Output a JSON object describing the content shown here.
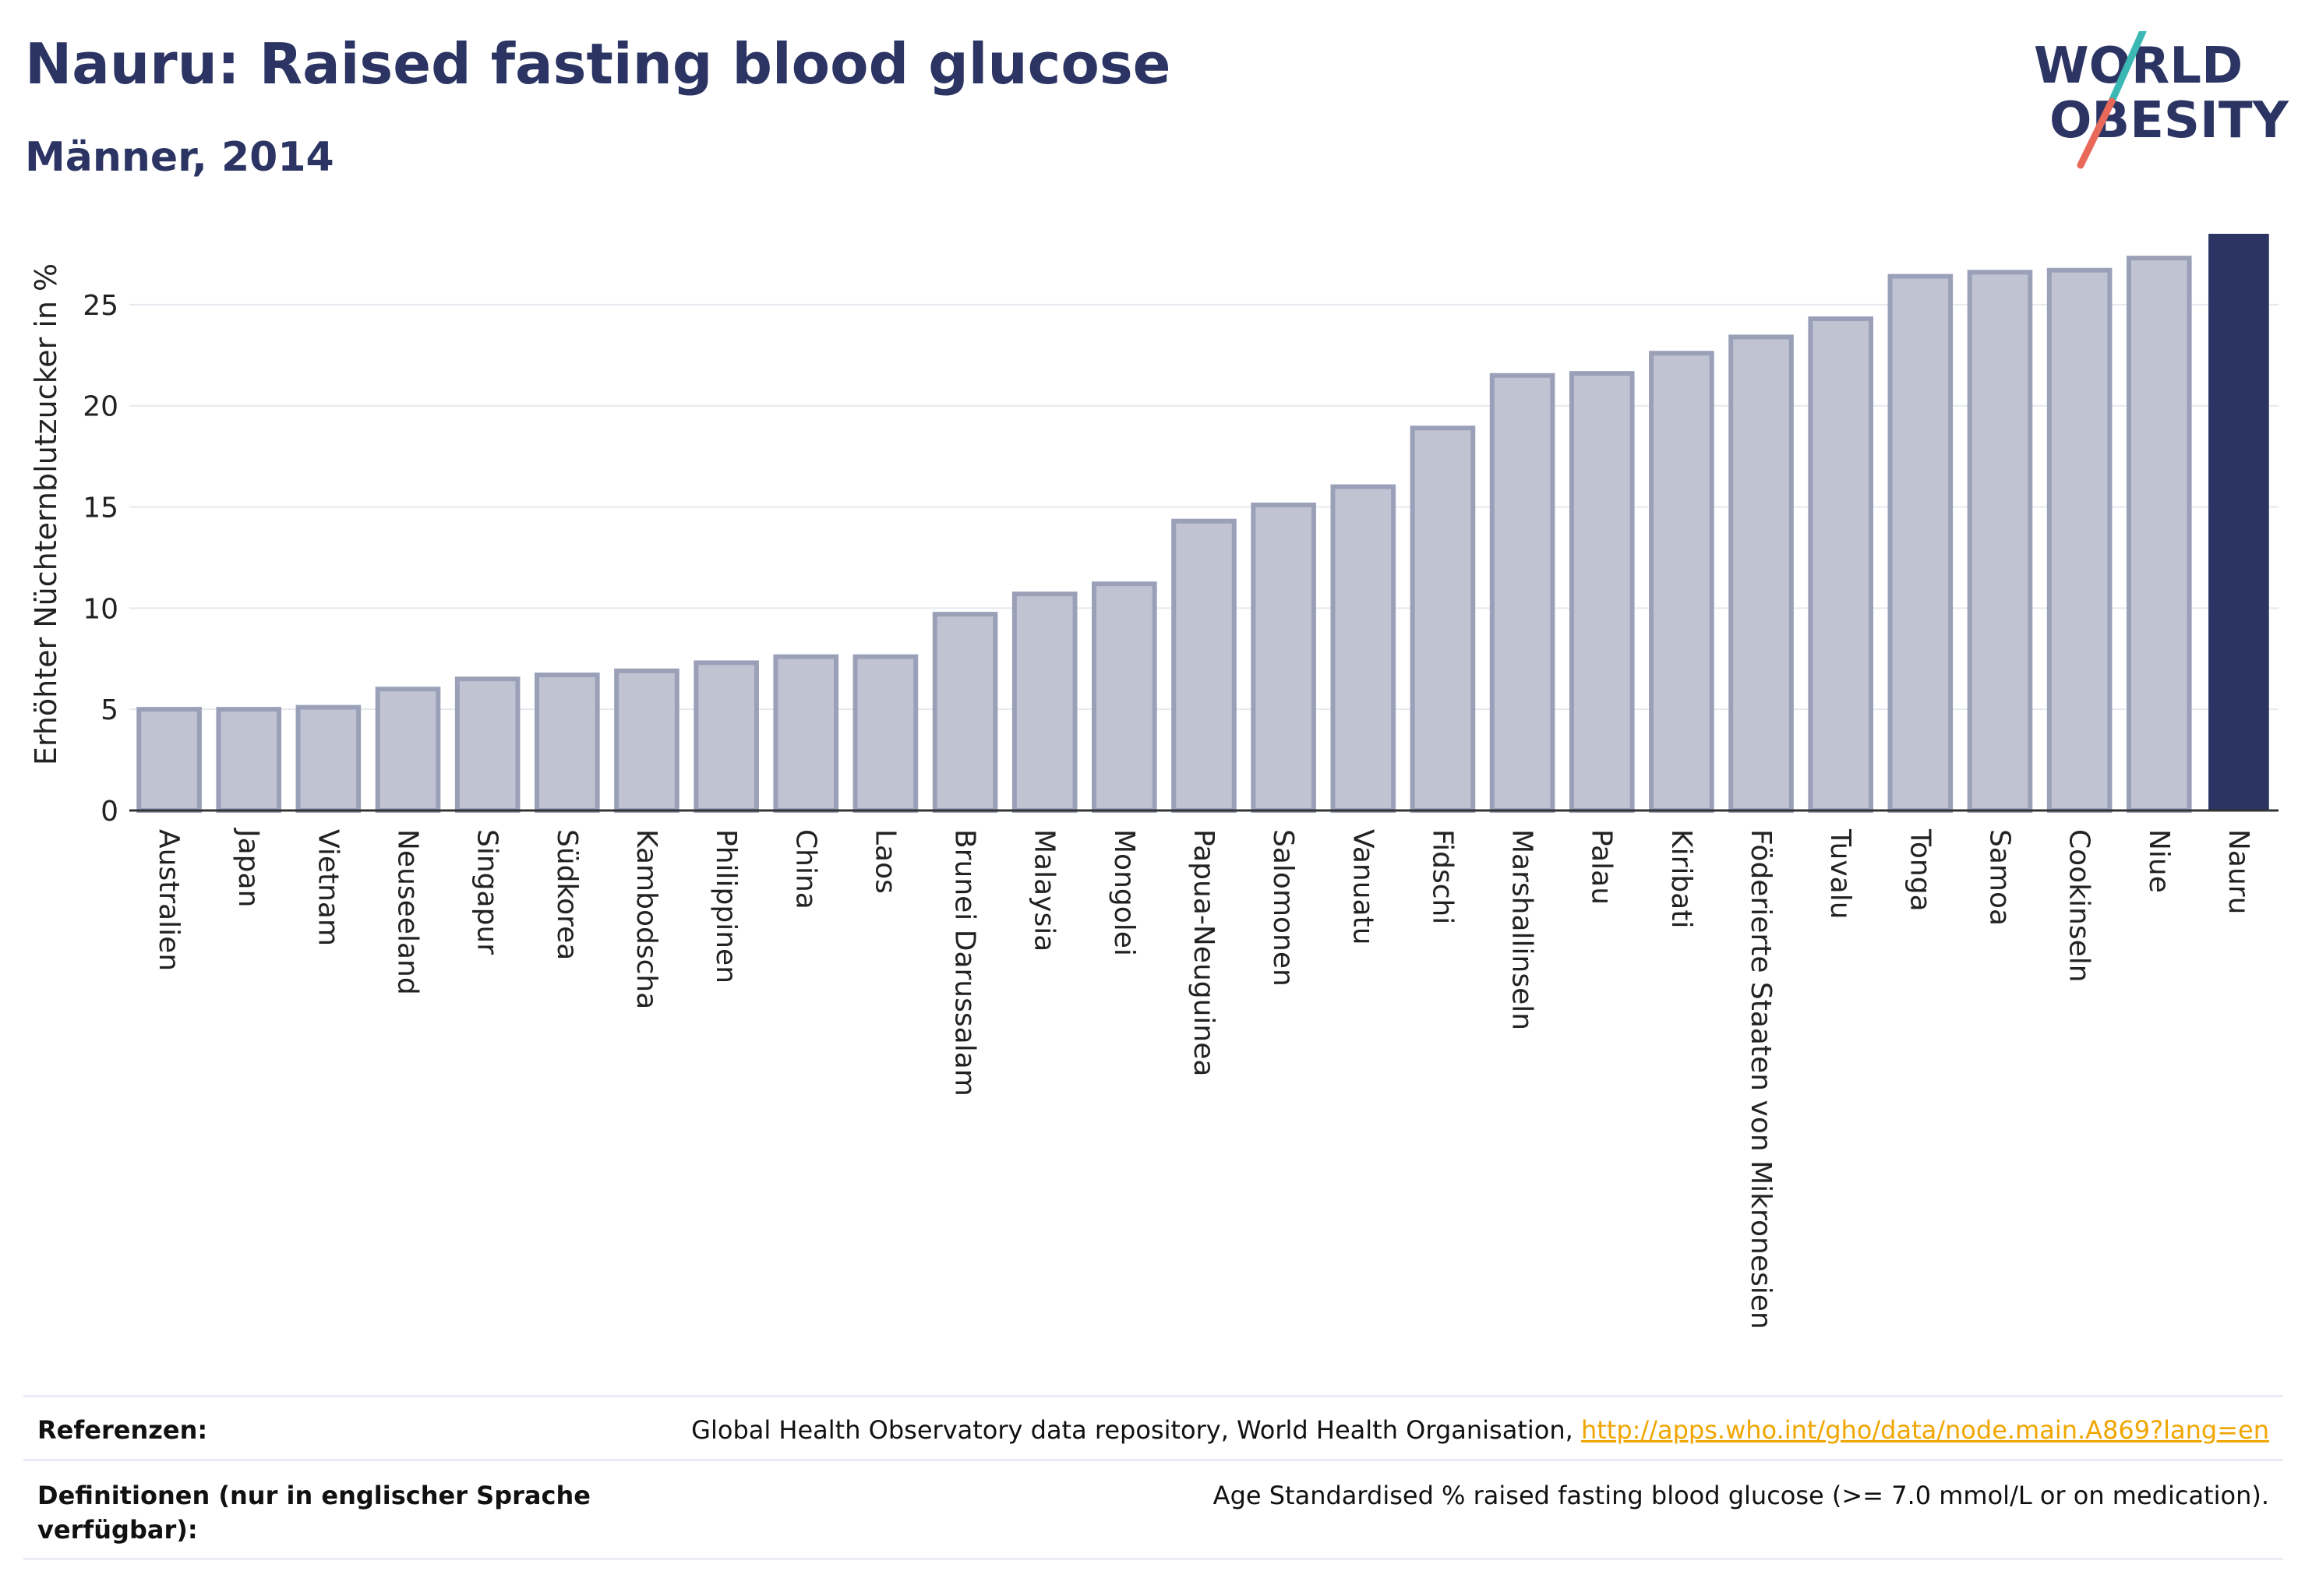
{
  "header": {
    "title": "Nauru: Raised fasting blood glucose",
    "subtitle": "Männer, 2014"
  },
  "logo": {
    "line1": "WORLD",
    "line2": "OBESITY"
  },
  "colors": {
    "bar_fill": "#c0c3d1",
    "bar_stroke": "#9aa0b8",
    "highlight": "#2b3462",
    "grid": "#e6e8ef",
    "logo_text": "#2b3462",
    "logo_slash_teal": "#3bb8b4",
    "logo_slash_red": "#e8685a"
  },
  "chart_data": {
    "type": "bar",
    "ylabel": "Erhöhter Nüchternblutzucker in %",
    "yticks": [
      0,
      5,
      10,
      15,
      20,
      25
    ],
    "ylim": [
      0,
      28.5
    ],
    "highlight": "Nauru",
    "categories": [
      "Australien",
      "Japan",
      "Vietnam",
      "Neuseeland",
      "Singapur",
      "Südkorea",
      "Kambodscha",
      "Philippinen",
      "China",
      "Laos",
      "Brunei Darussalam",
      "Malaysia",
      "Mongolei",
      "Papua-Neuguinea",
      "Salomonen",
      "Vanuatu",
      "Fidschi",
      "Marshallinseln",
      "Palau",
      "Kiribati",
      "Föderierte Staaten von Mikronesien",
      "Tuvalu",
      "Tonga",
      "Samoa",
      "Cookinseln",
      "Niue",
      "Nauru"
    ],
    "values": [
      5.0,
      5.0,
      5.1,
      6.0,
      6.5,
      6.7,
      6.9,
      7.3,
      7.6,
      7.6,
      9.7,
      10.7,
      11.2,
      14.3,
      15.1,
      16.0,
      18.9,
      21.5,
      21.6,
      22.6,
      23.4,
      24.3,
      26.4,
      26.6,
      26.7,
      27.3,
      28.5
    ]
  },
  "references": {
    "ref_label": "Referenzen:",
    "ref_text": "Global Health Observatory data repository, World Health Organisation, ",
    "ref_link": "http://apps.who.int/gho/data/node.main.A869?lang=en",
    "def_label": "Definitionen (nur in englischer Sprache verfügbar):",
    "def_text": "Age Standardised % raised fasting blood glucose (>= 7.0 mmol/L or on medication)."
  }
}
